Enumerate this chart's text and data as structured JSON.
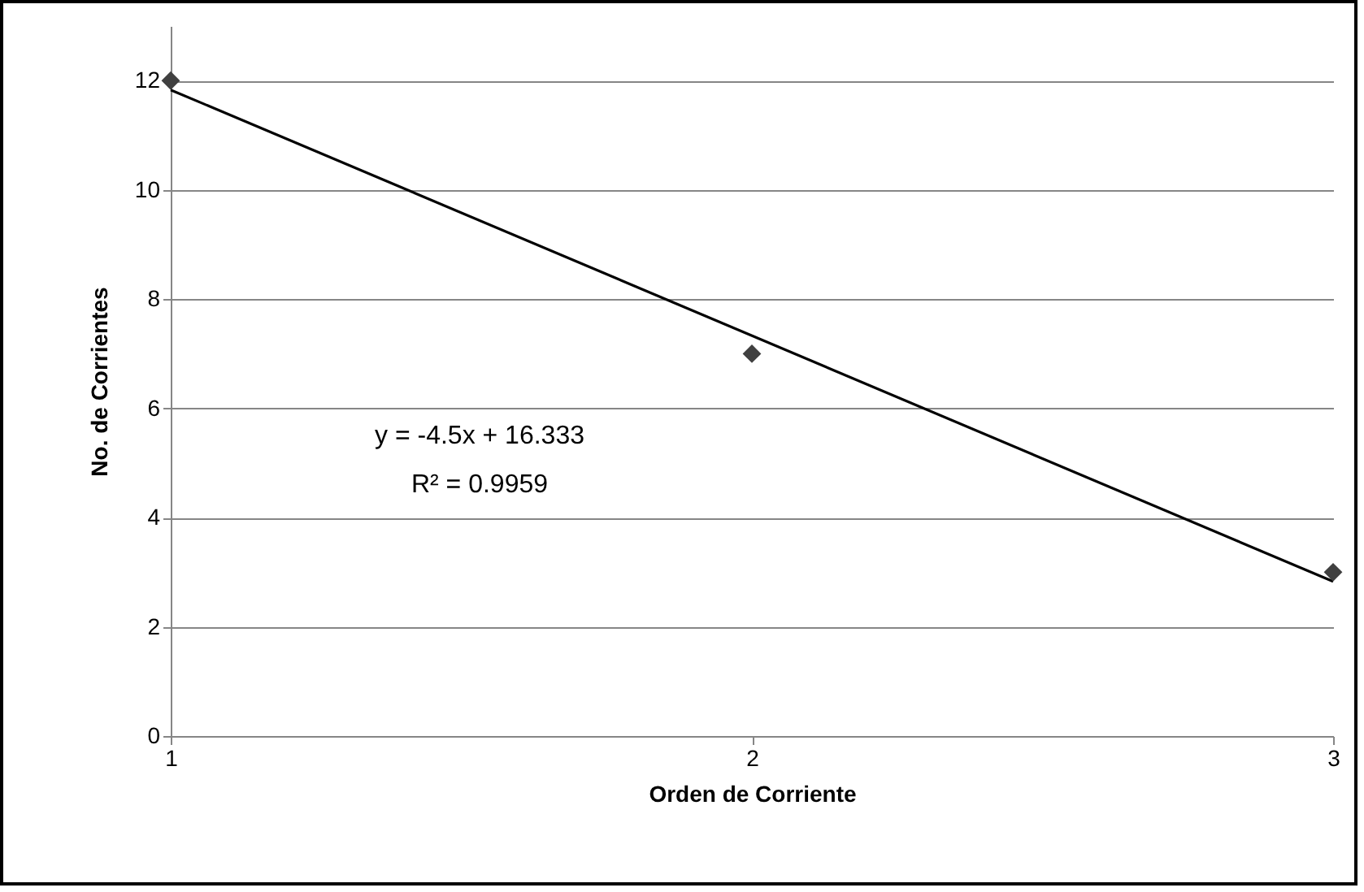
{
  "chart_data": {
    "type": "scatter",
    "xlabel": "Orden de Corriente",
    "ylabel": "No. de Corrientes",
    "x": [
      1,
      2,
      3
    ],
    "series": [
      {
        "color": "#404040",
        "values": [
          12,
          7,
          3
        ]
      },
      {
        "type": "line",
        "marker": "none",
        "color": "#000000",
        "x": [
          1,
          3
        ],
        "values": [
          11.83,
          2.83
        ]
      }
    ],
    "xlim": [
      1,
      3
    ],
    "xticks": [
      1,
      2,
      3
    ],
    "ylim": [
      0,
      13
    ],
    "yticks": [
      0,
      2,
      4,
      6,
      8,
      10,
      12
    ],
    "grid": "y",
    "marker": "diamond",
    "line_style": "solid",
    "annotations": [
      "y = -4.5x + 16.333",
      "R² = 0.9959"
    ]
  }
}
